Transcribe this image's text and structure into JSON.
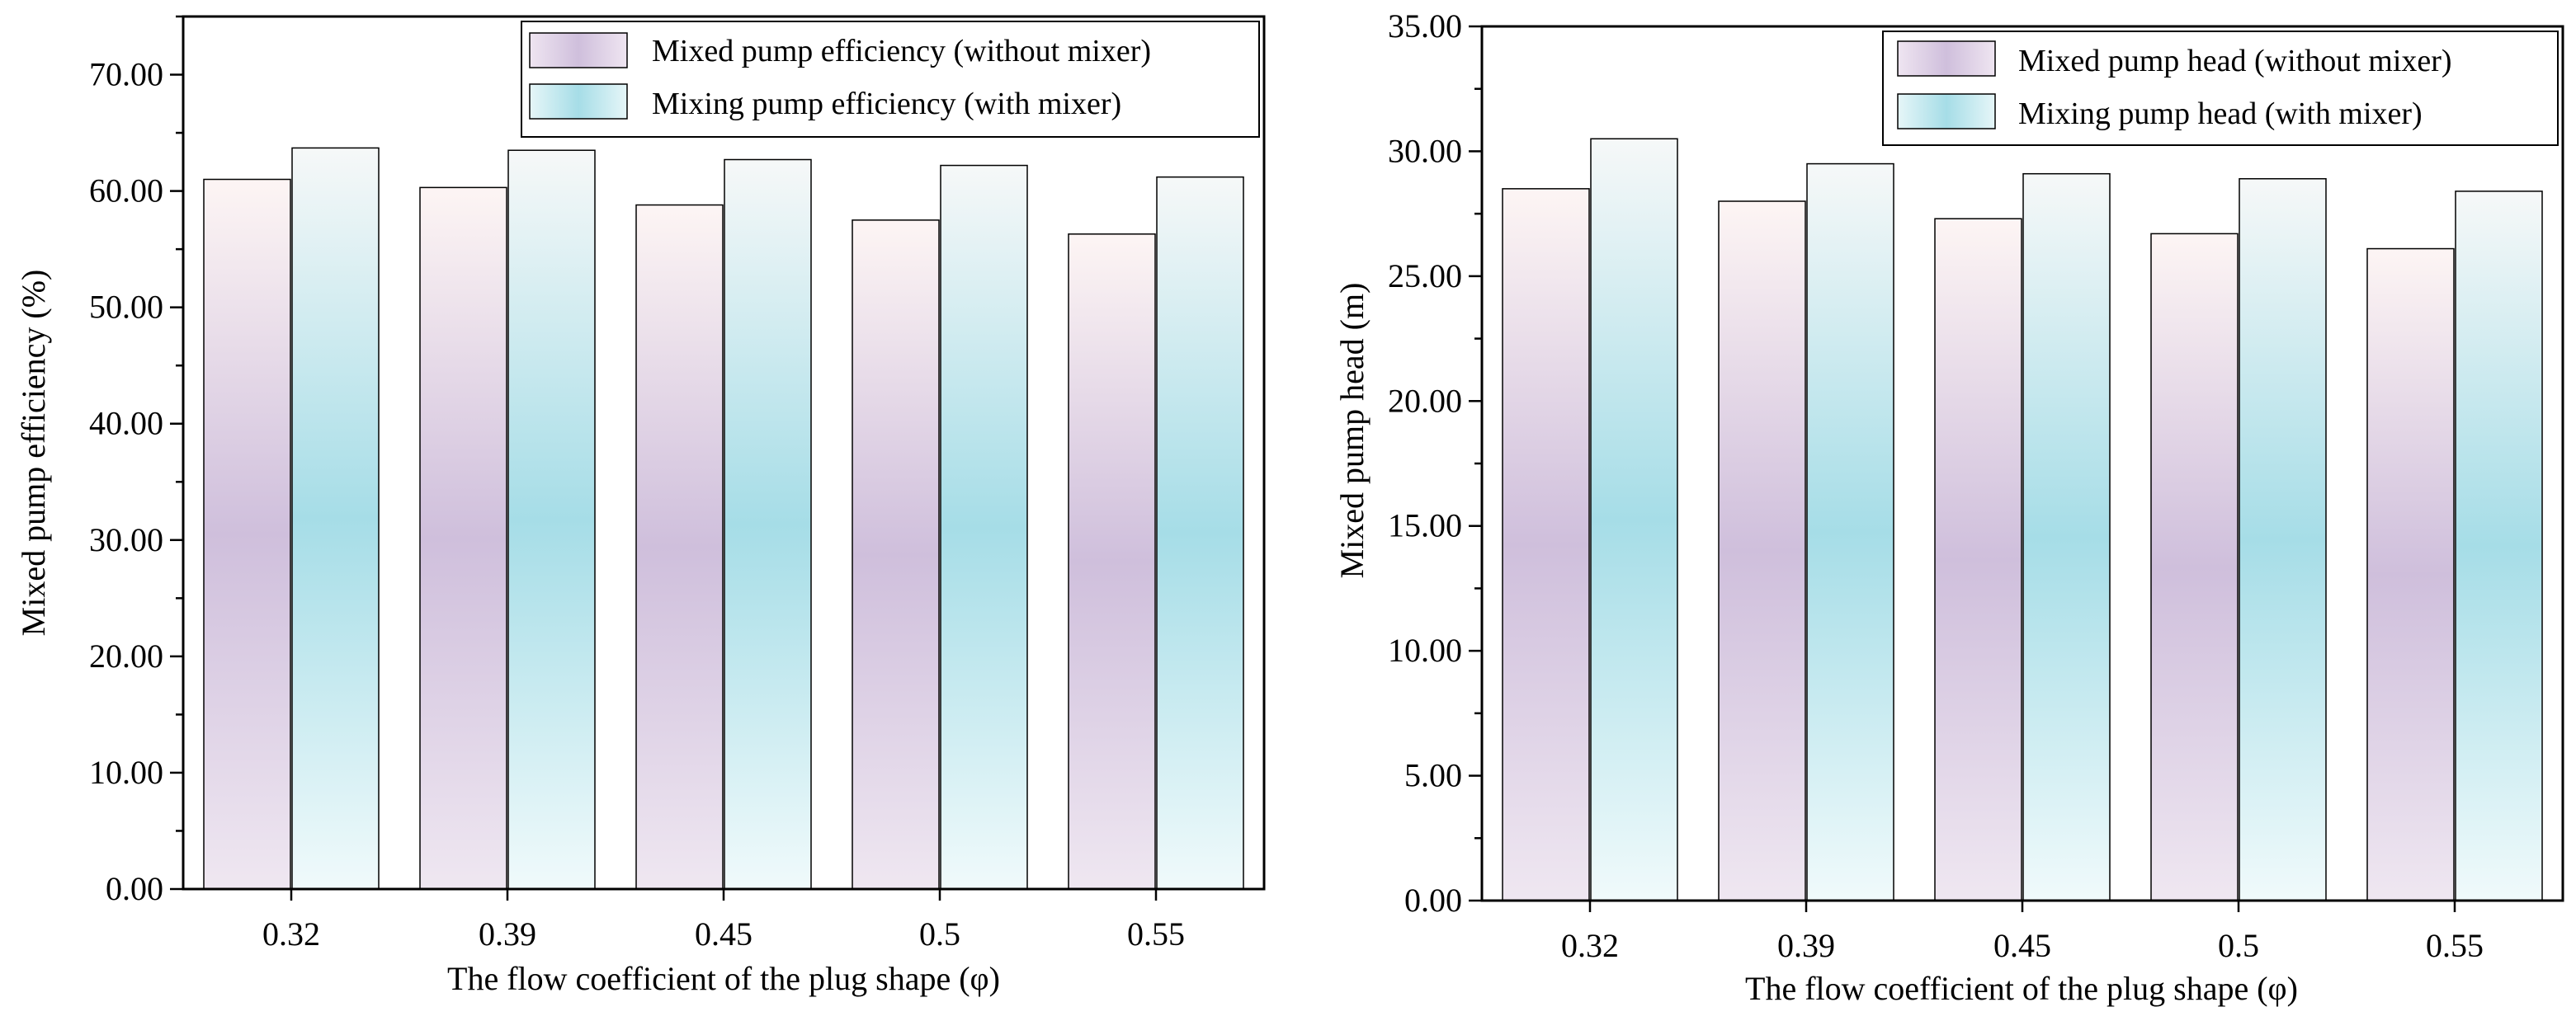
{
  "chart_data": [
    {
      "type": "bar",
      "title": "",
      "xlabel": "The flow coefficient of the plug shape (φ)",
      "ylabel": "Mixed pump efficiency (%)",
      "categories": [
        "0.32",
        "0.39",
        "0.45",
        "0.5",
        "0.55"
      ],
      "ylim": [
        0,
        75
      ],
      "yticks": [
        0,
        10,
        20,
        30,
        40,
        50,
        60,
        70
      ],
      "ytick_labels": [
        "0.00",
        "10.00",
        "20.00",
        "30.00",
        "40.00",
        "50.00",
        "60.00",
        "70.00"
      ],
      "grid": false,
      "legend_position": "top-right",
      "series": [
        {
          "name": "Mixed pump efficiency (without mixer)",
          "values": [
            61.0,
            60.3,
            58.8,
            57.5,
            56.3
          ],
          "color": "#cfbfdc"
        },
        {
          "name": "Mixing pump efficiency (with mixer)",
          "values": [
            63.7,
            63.5,
            62.7,
            62.2,
            61.2
          ],
          "color": "#a6dde7"
        }
      ]
    },
    {
      "type": "bar",
      "title": "",
      "xlabel": "The flow coefficient of the plug shape (φ)",
      "ylabel": "Mixed pump head (m)",
      "categories": [
        "0.32",
        "0.39",
        "0.45",
        "0.5",
        "0.55"
      ],
      "ylim": [
        0,
        35
      ],
      "yticks": [
        0,
        5,
        10,
        15,
        20,
        25,
        30,
        35
      ],
      "ytick_labels": [
        "0.00",
        "5.00",
        "10.00",
        "15.00",
        "20.00",
        "25.00",
        "30.00",
        "35.00"
      ],
      "grid": false,
      "legend_position": "top-right",
      "series": [
        {
          "name": "Mixed pump head (without mixer)",
          "values": [
            28.5,
            28.0,
            27.3,
            26.7,
            26.1
          ],
          "color": "#cfbfdc"
        },
        {
          "name": "Mixing pump head (with mixer)",
          "values": [
            30.5,
            29.5,
            29.1,
            28.9,
            28.4
          ],
          "color": "#a6dde7"
        }
      ]
    }
  ]
}
